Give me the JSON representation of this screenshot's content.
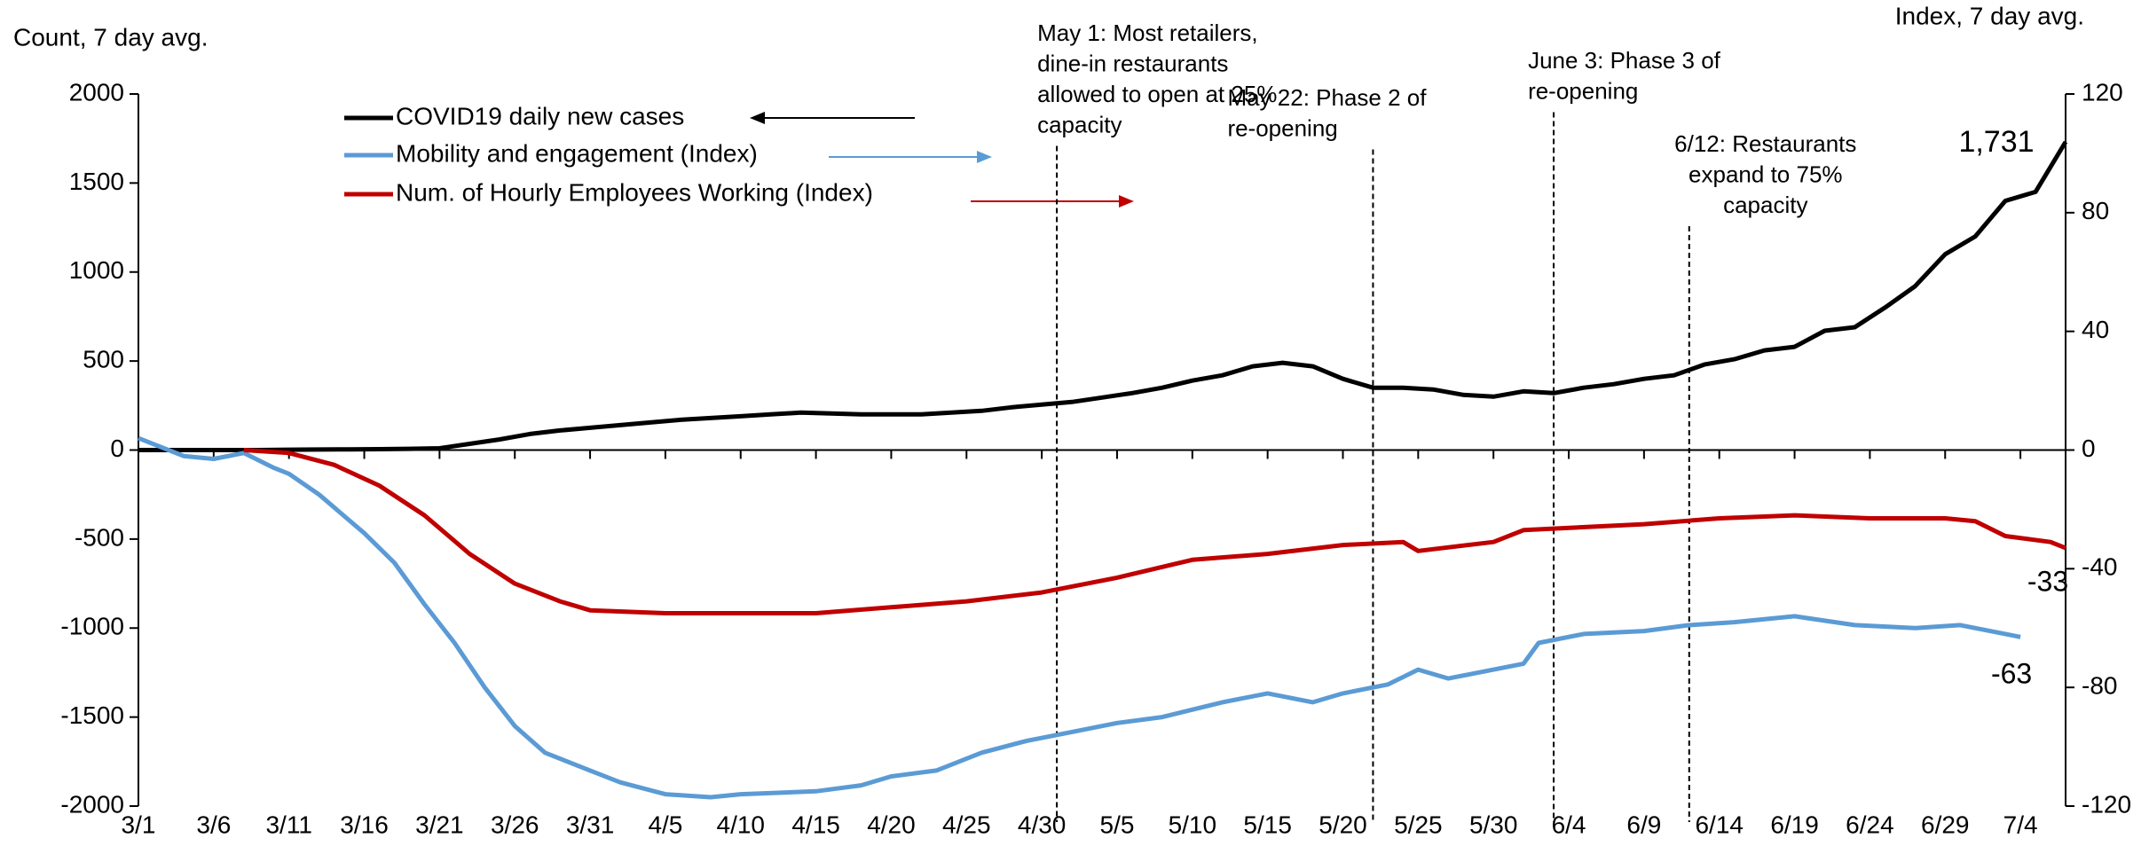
{
  "chart_data": {
    "type": "line",
    "y_axis_label": "Count, 7 day avg.",
    "y2_axis_label": "Index, 7 day avg.",
    "xlim": [
      0,
      128
    ],
    "xticks": [
      {
        "value": 0,
        "label": "3/1"
      },
      {
        "value": 5,
        "label": "3/6"
      },
      {
        "value": 10,
        "label": "3/11"
      },
      {
        "value": 15,
        "label": "3/16"
      },
      {
        "value": 20,
        "label": "3/21"
      },
      {
        "value": 25,
        "label": "3/26"
      },
      {
        "value": 30,
        "label": "3/31"
      },
      {
        "value": 35,
        "label": "4/5"
      },
      {
        "value": 40,
        "label": "4/10"
      },
      {
        "value": 45,
        "label": "4/15"
      },
      {
        "value": 50,
        "label": "4/20"
      },
      {
        "value": 55,
        "label": "4/25"
      },
      {
        "value": 60,
        "label": "4/30"
      },
      {
        "value": 65,
        "label": "5/5"
      },
      {
        "value": 70,
        "label": "5/10"
      },
      {
        "value": 75,
        "label": "5/15"
      },
      {
        "value": 80,
        "label": "5/20"
      },
      {
        "value": 85,
        "label": "5/25"
      },
      {
        "value": 90,
        "label": "5/30"
      },
      {
        "value": 95,
        "label": "6/4"
      },
      {
        "value": 100,
        "label": "6/9"
      },
      {
        "value": 105,
        "label": "6/14"
      },
      {
        "value": 110,
        "label": "6/19"
      },
      {
        "value": 115,
        "label": "6/24"
      },
      {
        "value": 120,
        "label": "6/29"
      },
      {
        "value": 125,
        "label": "7/4"
      }
    ],
    "ylim": [
      -2000,
      2000
    ],
    "yticks": [
      -2000,
      -1500,
      -1000,
      -500,
      0,
      500,
      1000,
      1500,
      2000
    ],
    "y2lim": [
      -120,
      120
    ],
    "y2ticks": [
      -120,
      -80,
      -40,
      0,
      40,
      80,
      120
    ],
    "series": [
      {
        "name": "COVID19 daily new cases",
        "color": "#000000",
        "end_label": "1,731",
        "x": [
          0,
          2,
          4,
          6,
          8,
          10,
          12,
          14,
          16,
          18,
          20,
          22,
          24,
          26,
          28,
          30,
          32,
          34,
          36,
          38,
          40,
          42,
          44,
          46,
          48,
          50,
          52,
          54,
          56,
          58,
          60,
          62,
          64,
          66,
          68,
          70,
          72,
          74,
          76,
          78,
          80,
          82,
          84,
          86,
          88,
          90,
          92,
          94,
          96,
          98,
          100,
          102,
          104,
          106,
          108,
          110,
          112,
          114,
          116,
          118,
          120,
          122,
          124,
          126,
          128
        ],
        "values": [
          0,
          0,
          0,
          0,
          0,
          2,
          3,
          4,
          5,
          7,
          10,
          35,
          60,
          90,
          110,
          125,
          140,
          155,
          170,
          180,
          190,
          200,
          210,
          205,
          200,
          200,
          200,
          210,
          220,
          240,
          255,
          270,
          295,
          320,
          350,
          390,
          420,
          470,
          490,
          470,
          400,
          350,
          350,
          340,
          310,
          300,
          330,
          320,
          350,
          370,
          400,
          420,
          480,
          510,
          560,
          580,
          670,
          690,
          800,
          920,
          1100,
          1200,
          1400,
          1450,
          1731
        ]
      },
      {
        "name": "Mobility and engagement (Index)",
        "color": "#5b9bd5",
        "axis": "y2",
        "end_label": "-63",
        "x": [
          0,
          3,
          5,
          7,
          9,
          10,
          12,
          15,
          17,
          19,
          21,
          23,
          25,
          27,
          30,
          32,
          35,
          38,
          40,
          45,
          48,
          50,
          53,
          56,
          59,
          62,
          65,
          68,
          72,
          75,
          78,
          80,
          83,
          85,
          87,
          89,
          92,
          93,
          96,
          100,
          103,
          106,
          110,
          114,
          118,
          121,
          124,
          125
        ],
        "values": [
          4,
          -2,
          -3,
          -1,
          -6,
          -8,
          -15,
          -28,
          -38,
          -52,
          -65,
          -80,
          -93,
          -102,
          -108,
          -112,
          -116,
          -117,
          -116,
          -115,
          -113,
          -110,
          -108,
          -102,
          -98,
          -95,
          -92,
          -90,
          -85,
          -82,
          -85,
          -82,
          -79,
          -74,
          -77,
          -75,
          -72,
          -65,
          -62,
          -61,
          -59,
          -58,
          -56,
          -59,
          -60,
          -59,
          -62,
          -63
        ]
      },
      {
        "name": "Num. of Hourly Employees Working (Index)",
        "color": "#c00000",
        "axis": "y2",
        "end_label": "-33",
        "x": [
          7,
          10,
          13,
          16,
          19,
          22,
          25,
          28,
          30,
          35,
          45,
          50,
          55,
          60,
          65,
          70,
          75,
          80,
          84,
          85,
          90,
          92,
          100,
          105,
          110,
          115,
          120,
          122,
          124,
          127,
          128
        ],
        "values": [
          0,
          -1,
          -5,
          -12,
          -22,
          -35,
          -45,
          -51,
          -54,
          -55,
          -55,
          -53,
          -51,
          -48,
          -43,
          -37,
          -35,
          -32,
          -31,
          -34,
          -31,
          -27,
          -25,
          -23,
          -22,
          -23,
          -23,
          -24,
          -29,
          -31,
          -33
        ]
      }
    ],
    "annotations": [
      {
        "x": 61,
        "text": [
          "May 1: Most retailers,",
          "dine-in restaurants",
          "allowed to open at 25%",
          "capacity"
        ]
      },
      {
        "x": 82,
        "text": [
          "May 22: Phase 2 of",
          "re-opening"
        ]
      },
      {
        "x": 94,
        "text": [
          "June 3: Phase 3 of",
          "re-opening"
        ]
      },
      {
        "x": 103,
        "text": [
          "6/12: Restaurants",
          "expand to 75%",
          "capacity"
        ]
      }
    ]
  }
}
